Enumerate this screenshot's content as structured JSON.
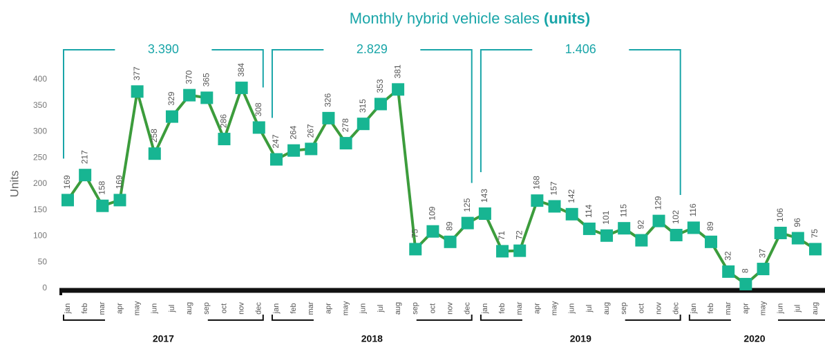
{
  "chart_data": {
    "type": "line",
    "title": "Monthly hybrid vehicle sales ",
    "title_bold": "(units)",
    "y_label": "Units",
    "categories": [
      "jan",
      "feb",
      "mar",
      "apr",
      "may",
      "jun",
      "jul",
      "aug",
      "sep",
      "oct",
      "nov",
      "dec",
      "jan",
      "feb",
      "mar",
      "apr",
      "may",
      "jun",
      "jul",
      "aug",
      "sep",
      "oct",
      "nov",
      "dec",
      "jan",
      "feb",
      "mar",
      "apr",
      "may",
      "jun",
      "jul",
      "aug",
      "sep",
      "oct",
      "nov",
      "dec",
      "jan",
      "feb",
      "mar",
      "apr",
      "may",
      "jun",
      "jul",
      "aug"
    ],
    "series": [
      {
        "name": "Units",
        "color": "#3c9c3c",
        "marker_color": "#17b592",
        "values": [
          169,
          217,
          158,
          169,
          377,
          258,
          329,
          370,
          365,
          286,
          384,
          308,
          247,
          264,
          267,
          326,
          278,
          315,
          353,
          381,
          75,
          109,
          89,
          125,
          143,
          71,
          72,
          168,
          157,
          142,
          114,
          101,
          115,
          92,
          129,
          102,
          116,
          89,
          32,
          8,
          37,
          106,
          96,
          75
        ]
      }
    ],
    "years": [
      {
        "label": "2017",
        "total": {
          "value": 3390,
          "label": "3.390"
        }
      },
      {
        "label": "2018",
        "total": {
          "value": 2829,
          "label": "2.829"
        }
      },
      {
        "label": "2019",
        "total": {
          "value": 1406,
          "label": "1.406"
        }
      },
      {
        "label": "2020"
      }
    ],
    "ylim": [
      0,
      400
    ],
    "yticks": [
      0,
      50,
      100,
      150,
      200,
      250,
      300,
      350,
      400
    ]
  }
}
